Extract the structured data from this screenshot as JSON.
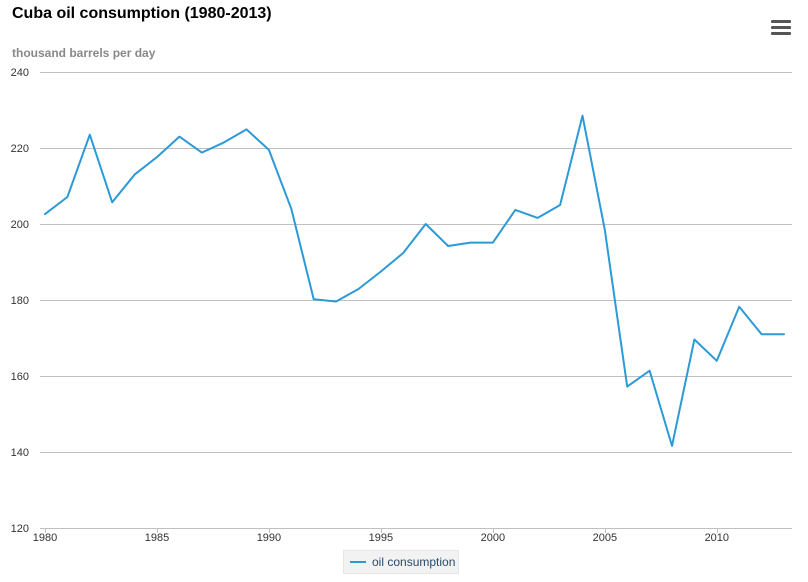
{
  "header": {
    "title": "Cuba oil consumption (1980-2013)",
    "menu_icon": "hamburger-menu-icon"
  },
  "colors": {
    "series": "#2b9ad6",
    "grid": "#c0c0c0",
    "axis_text": "#333333",
    "unit_text": "#888888"
  },
  "chart_data": {
    "type": "line",
    "title": "Cuba oil consumption (1980-2013)",
    "ylabel": "thousand barrels per day",
    "xlabel": "",
    "ylim": [
      120,
      240
    ],
    "xlim": [
      1980,
      2013
    ],
    "yticks": [
      120,
      140,
      160,
      180,
      200,
      220,
      240
    ],
    "xticks": [
      1980,
      1985,
      1990,
      1995,
      2000,
      2005,
      2010
    ],
    "grid": true,
    "legend_position": "bottom-center",
    "x": [
      1980,
      1981,
      1982,
      1983,
      1984,
      1985,
      1986,
      1987,
      1988,
      1989,
      1990,
      1991,
      1992,
      1993,
      1994,
      1995,
      1996,
      1997,
      1998,
      1999,
      2000,
      2001,
      2002,
      2003,
      2004,
      2005,
      2006,
      2007,
      2008,
      2009,
      2010,
      2011,
      2012,
      2013
    ],
    "series": [
      {
        "name": "oil consumption",
        "values": [
          202.6,
          207.1,
          223.5,
          205.7,
          213.0,
          217.6,
          223.0,
          218.8,
          221.5,
          224.9,
          219.5,
          204.0,
          180.2,
          179.6,
          182.9,
          187.5,
          192.4,
          200.0,
          194.2,
          195.1,
          195.1,
          203.7,
          201.6,
          205.0,
          228.5,
          198.5,
          157.2,
          161.4,
          141.6,
          169.6,
          164.0,
          178.2,
          171.0,
          171.0
        ]
      }
    ]
  }
}
